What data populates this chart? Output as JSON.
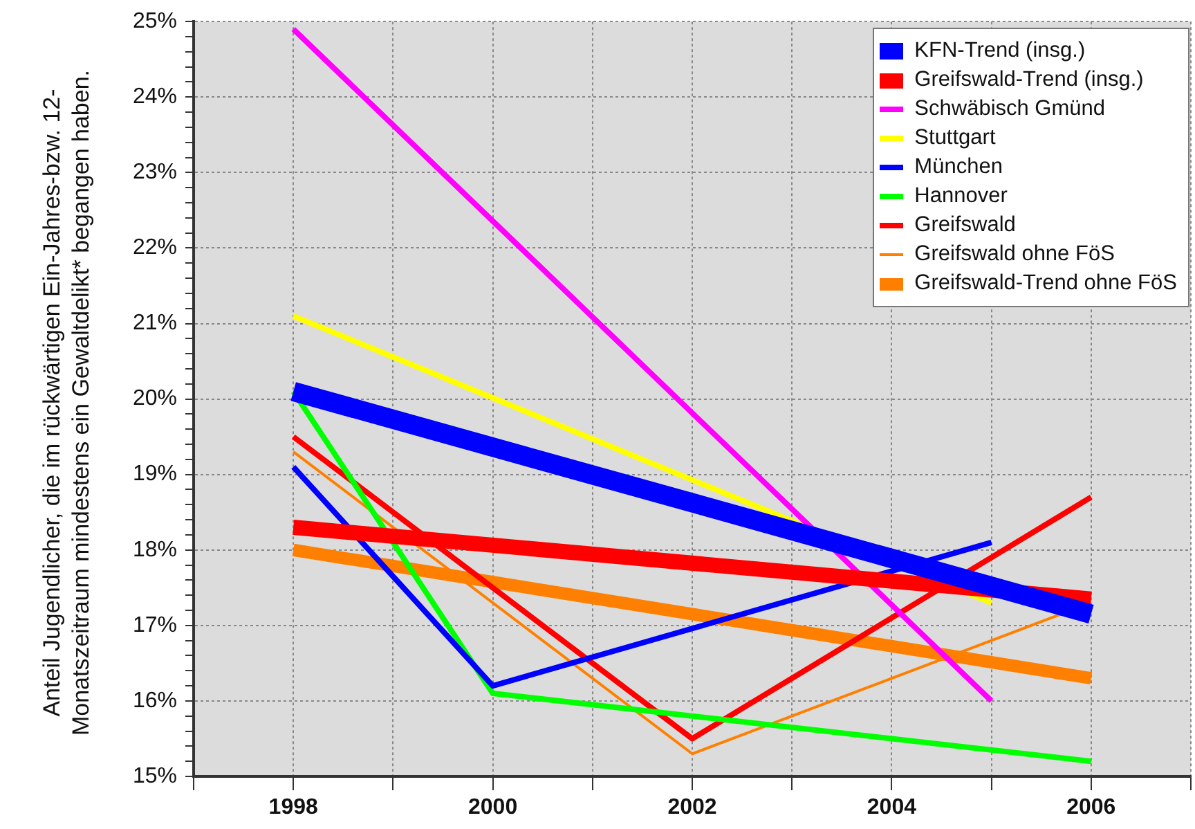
{
  "chart_data": {
    "type": "line",
    "ylabel": "Anteil Jugendlicher, die im rückwärtigen Ein-Jahres-bzw. 12-Monatszeitraum mindestens ein Gewaltdelikt* begangen haben.",
    "xlim": [
      1997,
      2007
    ],
    "xticks": [
      {
        "value": 1997,
        "label": null
      },
      1998,
      {
        "value": 1999,
        "label": null
      },
      2000,
      {
        "value": 2001,
        "label": null
      },
      2002,
      {
        "value": 2003,
        "label": null
      },
      2004,
      {
        "value": 2005,
        "label": null
      },
      2006,
      {
        "value": 2007,
        "label": null
      }
    ],
    "ylim": [
      15,
      25
    ],
    "yticks": [
      {
        "value": 15,
        "label": "15%"
      },
      {
        "value": 15.2,
        "label": null
      },
      {
        "value": 15.4,
        "label": null
      },
      {
        "value": 15.6,
        "label": null
      },
      {
        "value": 15.8,
        "label": null
      },
      {
        "value": 16,
        "label": "16%"
      },
      {
        "value": 16.2,
        "label": null
      },
      {
        "value": 16.4,
        "label": null
      },
      {
        "value": 16.6,
        "label": null
      },
      {
        "value": 16.8,
        "label": null
      },
      {
        "value": 17,
        "label": "17%"
      },
      {
        "value": 17.2,
        "label": null
      },
      {
        "value": 17.4,
        "label": null
      },
      {
        "value": 17.6,
        "label": null
      },
      {
        "value": 17.8,
        "label": null
      },
      {
        "value": 18,
        "label": "18%"
      },
      {
        "value": 18.2,
        "label": null
      },
      {
        "value": 18.4,
        "label": null
      },
      {
        "value": 18.6,
        "label": null
      },
      {
        "value": 18.8,
        "label": null
      },
      {
        "value": 19,
        "label": "19%"
      },
      {
        "value": 19.2,
        "label": null
      },
      {
        "value": 19.4,
        "label": null
      },
      {
        "value": 19.6,
        "label": null
      },
      {
        "value": 19.8,
        "label": null
      },
      {
        "value": 20,
        "label": "20%"
      },
      {
        "value": 20.2,
        "label": null
      },
      {
        "value": 20.4,
        "label": null
      },
      {
        "value": 20.6,
        "label": null
      },
      {
        "value": 20.8,
        "label": null
      },
      {
        "value": 21,
        "label": "21%"
      },
      {
        "value": 21.2,
        "label": null
      },
      {
        "value": 21.4,
        "label": null
      },
      {
        "value": 21.6,
        "label": null
      },
      {
        "value": 21.8,
        "label": null
      },
      {
        "value": 22,
        "label": "22%"
      },
      {
        "value": 22.2,
        "label": null
      },
      {
        "value": 22.4,
        "label": null
      },
      {
        "value": 22.6,
        "label": null
      },
      {
        "value": 22.8,
        "label": null
      },
      {
        "value": 23,
        "label": "23%"
      },
      {
        "value": 23.2,
        "label": null
      },
      {
        "value": 23.4,
        "label": null
      },
      {
        "value": 23.6,
        "label": null
      },
      {
        "value": 23.8,
        "label": null
      },
      {
        "value": 24,
        "label": "24%"
      },
      {
        "value": 24.2,
        "label": null
      },
      {
        "value": 24.4,
        "label": null
      },
      {
        "value": 24.6,
        "label": null
      },
      {
        "value": 24.8,
        "label": null
      },
      {
        "value": 25,
        "label": "25%"
      }
    ],
    "grid": true,
    "legend": "top right",
    "marker": "none",
    "series": [
      {
        "name": "KFN-Trend (insg.)",
        "color": "#0000ff",
        "x": [
          1998,
          2006
        ],
        "values": [
          20.1,
          17.15
        ]
      },
      {
        "name": "Greifswald-Trend (insg.)",
        "color": "#ff0000",
        "x": [
          1998,
          2006
        ],
        "values": [
          18.3,
          17.35
        ]
      },
      {
        "name": "Schwäbisch Gmünd",
        "color": "#ff00ff",
        "x": [
          1998,
          2005
        ],
        "values": [
          24.9,
          16.0
        ]
      },
      {
        "name": "Stuttgart",
        "color": "#ffff00",
        "x": [
          1998,
          2005
        ],
        "values": [
          21.1,
          17.3
        ]
      },
      {
        "name": "München",
        "color": "#0000ff",
        "x": [
          1998,
          2000,
          2005
        ],
        "values": [
          19.1,
          16.2,
          18.1
        ]
      },
      {
        "name": "Hannover",
        "color": "#00ff00",
        "x": [
          1998,
          2000,
          2006
        ],
        "values": [
          20.1,
          16.1,
          15.2
        ]
      },
      {
        "name": "Greifswald",
        "color": "#ff0000",
        "x": [
          1998,
          2002,
          2006
        ],
        "values": [
          19.5,
          15.5,
          18.7
        ]
      },
      {
        "name": "Greifswald ohne FöS",
        "color": "#ff8000",
        "x": [
          1998,
          2002,
          2006
        ],
        "values": [
          19.3,
          15.3,
          17.3
        ]
      },
      {
        "name": "Greifswald-Trend ohne FöS",
        "color": "#ff8000",
        "x": [
          1998,
          2006
        ],
        "values": [
          18.0,
          16.3
        ]
      }
    ]
  }
}
